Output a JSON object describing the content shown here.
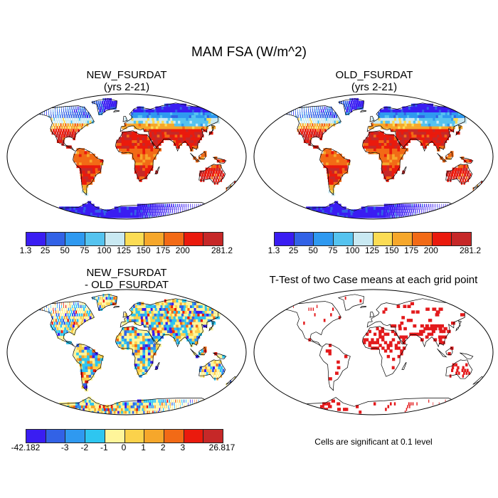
{
  "title": "MAM FSA (W/m^2)",
  "panels": {
    "new": {
      "title_line1": "NEW_FSURDAT",
      "title_line2": "(yrs 2-21)"
    },
    "old": {
      "title_line1": "OLD_FSURDAT",
      "title_line2": "(yrs 2-21)"
    },
    "diff": {
      "title_line1": "NEW_FSURDAT",
      "title_line2": "- OLD_FSURDAT"
    },
    "ttest": {
      "title": "T-Test of two Case means at each grid point",
      "note": "Cells are significant at 0.1 level"
    }
  },
  "colorbars": {
    "fsa": {
      "colors": [
        "#3a1df2",
        "#3262e6",
        "#2f99f0",
        "#55c3ef",
        "#c9e9f2",
        "#fbdc54",
        "#f6a72b",
        "#f26a16",
        "#ea1a0d",
        "#c62828"
      ],
      "labels": [
        "1.3",
        "25",
        "50",
        "75",
        "100",
        "125",
        "150",
        "175",
        "200",
        "281.2"
      ]
    },
    "diff": {
      "colors": [
        "#3a1df2",
        "#3262e6",
        "#2f99f0",
        "#2ec6f0",
        "#fff59a",
        "#fbd24b",
        "#f6a72b",
        "#f26a16",
        "#ea1a0d",
        "#c62828"
      ],
      "labels": [
        "-42.182",
        "-3",
        "-2",
        "-1",
        "0",
        "1",
        "2",
        "3",
        "26.817"
      ]
    }
  },
  "colors": {
    "significant": "#e31a1c",
    "map_border": "#000000"
  }
}
